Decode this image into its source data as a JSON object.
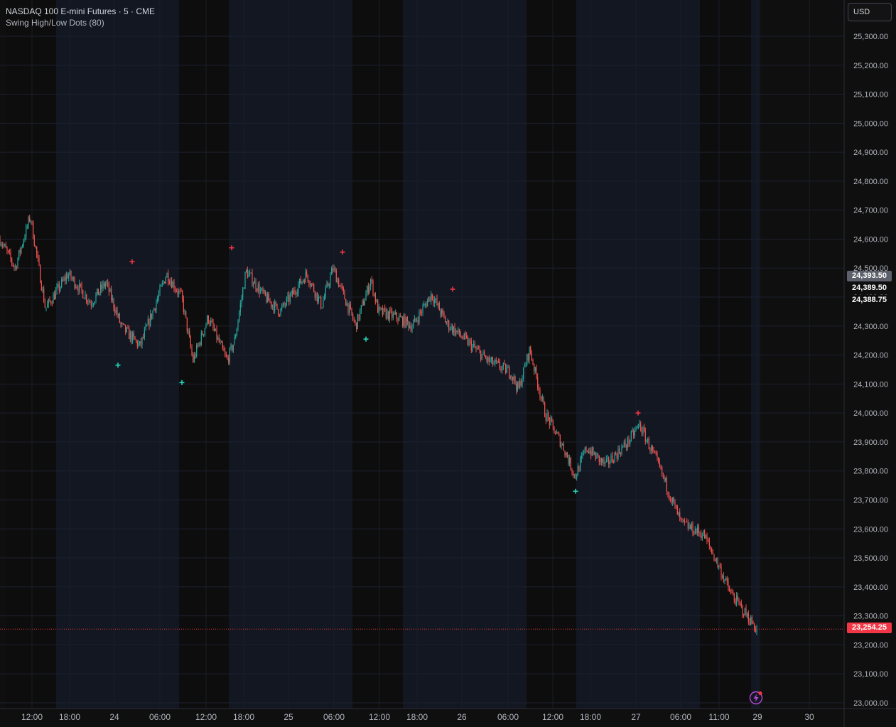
{
  "symbol_title": "NASDAQ 100 E-mini Futures · 5 · CME",
  "indicator_title": "Swing High/Low Dots (80)",
  "currency": "USD",
  "price_axis": {
    "ticks": [
      "25,300.00",
      "25,200.00",
      "25,100.00",
      "25,000.00",
      "24,900.00",
      "24,800.00",
      "24,700.00",
      "24,600.00",
      "24,500.00",
      "24,400.00",
      "24,300.00",
      "24,200.00",
      "24,100.00",
      "24,000.00",
      "23,900.00",
      "23,800.00",
      "23,700.00",
      "23,600.00",
      "23,500.00",
      "23,400.00",
      "23,300.00",
      "23,200.00",
      "23,100.00",
      "23,000.00"
    ],
    "tick_values": [
      25300,
      25200,
      25100,
      25000,
      24900,
      24800,
      24700,
      24600,
      24500,
      24400,
      24300,
      24200,
      24100,
      24000,
      23900,
      23800,
      23700,
      23600,
      23500,
      23400,
      23300,
      23200,
      23100,
      23000
    ]
  },
  "price_tags": {
    "high_label": "24,393.50",
    "mid_label": "24,389.50",
    "low_label": "24,388.75",
    "last_label": "23,254.25",
    "last_value": 23254.25,
    "last_color": "#f23645"
  },
  "time_axis": {
    "labels": [
      "12:00",
      "18:00",
      "24",
      "06:00",
      "12:00",
      "18:00",
      "25",
      "06:00",
      "12:00",
      "18:00",
      "26",
      "06:00",
      "12:00",
      "18:00",
      "27",
      "06:00",
      "11:00",
      "29",
      "30"
    ]
  },
  "colors": {
    "up": "#26a69a",
    "down": "#ef5350",
    "session_bg": "#131722",
    "swing_high": "#f23645",
    "swing_low": "#22d3b8"
  },
  "chart_data": {
    "type": "candlestick",
    "title": "NASDAQ 100 E-mini Futures · 5 · CME",
    "ylim": [
      23000,
      25300
    ],
    "price_path": [
      [
        0,
        24600
      ],
      [
        0.02,
        24500
      ],
      [
        0.04,
        24680
      ],
      [
        0.06,
        24360
      ],
      [
        0.09,
        24480
      ],
      [
        0.12,
        24380
      ],
      [
        0.14,
        24450
      ],
      [
        0.16,
        24300
      ],
      [
        0.185,
        24230
      ],
      [
        0.22,
        24480
      ],
      [
        0.24,
        24400
      ],
      [
        0.255,
        24180
      ],
      [
        0.275,
        24330
      ],
      [
        0.3,
        24180
      ],
      [
        0.31,
        24250
      ],
      [
        0.325,
        24490
      ],
      [
        0.35,
        24400
      ],
      [
        0.37,
        24350
      ],
      [
        0.405,
        24480
      ],
      [
        0.425,
        24370
      ],
      [
        0.44,
        24500
      ],
      [
        0.47,
        24300
      ],
      [
        0.49,
        24460
      ],
      [
        0.5,
        24350
      ],
      [
        0.525,
        24330
      ],
      [
        0.545,
        24300
      ],
      [
        0.57,
        24410
      ],
      [
        0.59,
        24310
      ],
      [
        0.62,
        24240
      ],
      [
        0.645,
        24180
      ],
      [
        0.675,
        24140
      ],
      [
        0.685,
        24080
      ],
      [
        0.7,
        24220
      ],
      [
        0.72,
        24000
      ],
      [
        0.745,
        23880
      ],
      [
        0.76,
        23780
      ],
      [
        0.775,
        23880
      ],
      [
        0.8,
        23820
      ],
      [
        0.83,
        23900
      ],
      [
        0.845,
        23960
      ],
      [
        0.87,
        23820
      ],
      [
        0.9,
        23620
      ],
      [
        0.93,
        23580
      ],
      [
        0.95,
        23470
      ],
      [
        0.965,
        23380
      ],
      [
        1,
        23254
      ]
    ],
    "swing_highs": [
      {
        "date": "24 02:30",
        "value": 24522
      },
      {
        "date": "24 15:30",
        "value": 24570
      },
      {
        "date": "25 06:00",
        "value": 24555
      },
      {
        "date": "25 21:00",
        "value": 24427
      },
      {
        "date": "27 00:00",
        "value": 24000
      }
    ],
    "swing_lows": [
      {
        "date": "24 00:00",
        "value": 24165
      },
      {
        "date": "24 09:00",
        "value": 24105
      },
      {
        "date": "25 09:00",
        "value": 24255
      },
      {
        "date": "26 16:30",
        "value": 23730
      }
    ],
    "last_price": 23254.25
  }
}
